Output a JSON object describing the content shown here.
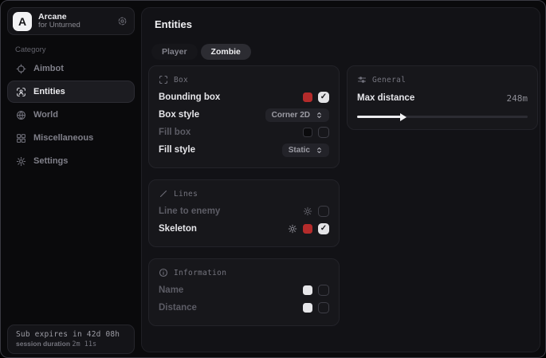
{
  "colors": {
    "window_bg": "#0a0a0c",
    "panel_bg": "#121216",
    "card_bg": "#17171b",
    "accent_red": "#b42b2b",
    "swatch_white": "#e6e6e9",
    "swatch_black": "#0b0b0d"
  },
  "sidebar": {
    "brand": {
      "logo_letter": "A",
      "name": "Arcane",
      "subtitle": "for Unturned"
    },
    "category_label": "Category",
    "items": [
      {
        "label": "Aimbot",
        "icon": "crosshair-icon"
      },
      {
        "label": "Entities",
        "icon": "entities-scan-icon"
      },
      {
        "label": "World",
        "icon": "globe-icon"
      },
      {
        "label": "Miscellaneous",
        "icon": "grid-icon"
      },
      {
        "label": "Settings",
        "icon": "gear-icon"
      }
    ],
    "active_item": "Entities",
    "footer": {
      "sub_expires": "Sub expires in 42d 08h",
      "session_label": "session duration",
      "session_value": "2m 11s"
    }
  },
  "main": {
    "title": "Entities",
    "tabs": [
      {
        "label": "Player"
      },
      {
        "label": "Zombie"
      }
    ],
    "active_tab": "Zombie",
    "cards": {
      "box": {
        "title": "Box",
        "rows": [
          {
            "label": "Bounding box",
            "swatch": "#b42b2b",
            "checked": true
          },
          {
            "label": "Box style",
            "dropdown": "Corner 2D"
          },
          {
            "label": "Fill box",
            "swatch": "#0b0b0d",
            "checked": false
          },
          {
            "label": "Fill style",
            "dropdown": "Static"
          }
        ]
      },
      "lines": {
        "title": "Lines",
        "rows": [
          {
            "label": "Line to enemy",
            "checked": false
          },
          {
            "label": "Skeleton",
            "swatch": "#b42b2b",
            "checked": true
          }
        ]
      },
      "information": {
        "title": "Information",
        "rows": [
          {
            "label": "Name",
            "swatch": "#e6e6e9",
            "checked": false
          },
          {
            "label": "Distance",
            "swatch": "#e6e6e9",
            "checked": false
          }
        ]
      },
      "general": {
        "title": "General",
        "row_label": "Max distance",
        "value": "248m",
        "slider_percent": 26
      }
    }
  }
}
